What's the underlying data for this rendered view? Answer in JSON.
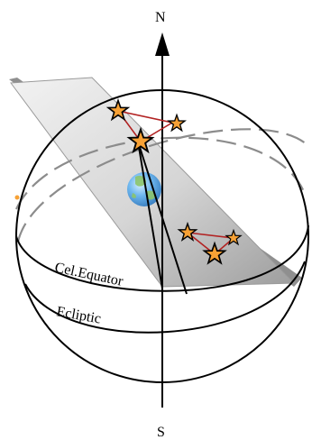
{
  "labels": {
    "north": "N",
    "south": "S",
    "celestial_equator": "Cel.Equator",
    "ecliptic": "Ecliptic"
  },
  "colors": {
    "sphere_outline": "#000000",
    "plane_fill": "#c8c8c8",
    "plane_edge": "#8a8a8a",
    "star_fill": "#f7a135",
    "star_outline": "#000000",
    "constellation_line": "#b22222",
    "earth_ocean": "#5aa6e6",
    "earth_land": "#7bbf5b",
    "dashed_back": "#8c8c8c"
  }
}
